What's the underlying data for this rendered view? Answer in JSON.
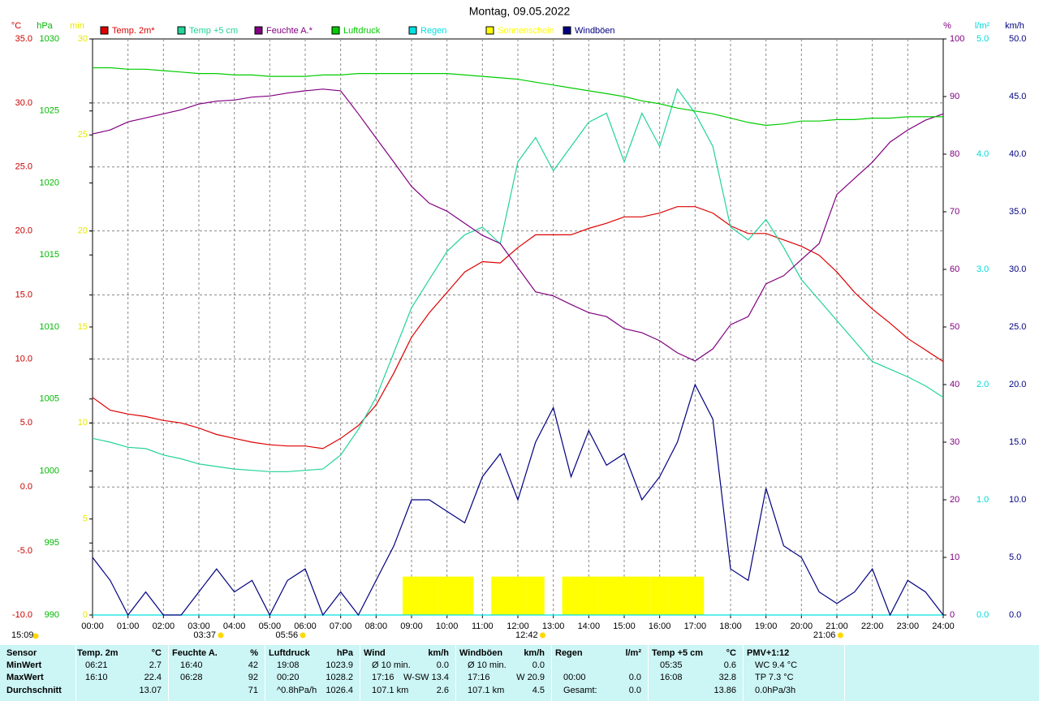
{
  "chart_data": {
    "type": "line",
    "title": "Montag, 09.05.2022",
    "x": [
      0,
      0.5,
      1,
      1.5,
      2,
      2.5,
      3,
      3.5,
      4,
      4.5,
      5,
      5.5,
      6,
      6.5,
      7,
      7.5,
      8,
      8.5,
      9,
      9.5,
      10,
      10.5,
      11,
      11.5,
      12,
      12.5,
      13,
      13.5,
      14,
      14.5,
      15,
      15.5,
      16,
      16.5,
      17,
      17.5,
      18,
      18.5,
      19,
      19.5,
      20,
      20.5,
      21,
      21.5,
      22,
      22.5,
      23,
      23.5,
      24
    ],
    "xlim": [
      0,
      24
    ],
    "xticks": [
      {
        "value": 0,
        "label": "00:00"
      },
      {
        "value": 1,
        "label": "01:00"
      },
      {
        "value": 2,
        "label": "02:00"
      },
      {
        "value": 3,
        "label": "03:00"
      },
      {
        "value": 4,
        "label": "04:00"
      },
      {
        "value": 5,
        "label": "05:00"
      },
      {
        "value": 6,
        "label": "06:00"
      },
      {
        "value": 7,
        "label": "07:00"
      },
      {
        "value": 8,
        "label": "08:00"
      },
      {
        "value": 9,
        "label": "09:00"
      },
      {
        "value": 10,
        "label": "10:00"
      },
      {
        "value": 11,
        "label": "11:00"
      },
      {
        "value": 12,
        "label": "12:00"
      },
      {
        "value": 13,
        "label": "13:00"
      },
      {
        "value": 14,
        "label": "14:00"
      },
      {
        "value": 15,
        "label": "15:00"
      },
      {
        "value": 16,
        "label": "16:00"
      },
      {
        "value": 17,
        "label": "17:00"
      },
      {
        "value": 18,
        "label": "18:00"
      },
      {
        "value": 19,
        "label": "19:00"
      },
      {
        "value": 20,
        "label": "20:00"
      },
      {
        "value": 21,
        "label": "21:00"
      },
      {
        "value": 22,
        "label": "22:00"
      },
      {
        "value": 23,
        "label": "23:00"
      },
      {
        "value": 24,
        "label": "24:00"
      }
    ],
    "grid": true,
    "axes": [
      {
        "name": "°C",
        "color": "#cc0000",
        "lim": [
          -10,
          35
        ],
        "ticks": [
          {
            "value": 35,
            "label": "35.0"
          },
          {
            "value": 30,
            "label": "30.0"
          },
          {
            "value": 25,
            "label": "25.0"
          },
          {
            "value": 20,
            "label": "20.0"
          },
          {
            "value": 15,
            "label": "15.0"
          },
          {
            "value": 10,
            "label": "10.0"
          },
          {
            "value": 5,
            "label": "5.0"
          },
          {
            "value": 0,
            "label": "0.0"
          },
          {
            "value": -5,
            "label": "-5.0"
          },
          {
            "value": -10,
            "label": "-10.0"
          }
        ]
      },
      {
        "name": "hPa",
        "color": "#00bb00",
        "lim": [
          990,
          1030
        ],
        "ticks": [
          1030,
          1025,
          1020,
          1015,
          1010,
          1005,
          1000,
          995,
          990
        ]
      },
      {
        "name": "min",
        "color": "#e8e800",
        "lim": [
          0,
          30
        ],
        "ticks": [
          30,
          25,
          20,
          15,
          10,
          5,
          0
        ]
      },
      {
        "name": "%",
        "color": "#800080",
        "lim": [
          0,
          100
        ],
        "ticks": [
          100,
          90,
          80,
          70,
          60,
          50,
          40,
          30,
          20,
          10,
          0
        ]
      },
      {
        "name": "l/m²",
        "color": "#00d8d8",
        "lim": [
          0,
          5
        ],
        "ticks": [
          {
            "value": 5,
            "label": "5.0"
          },
          {
            "value": 4,
            "label": "4.0"
          },
          {
            "value": 3,
            "label": "3.0"
          },
          {
            "value": 2,
            "label": "2.0"
          },
          {
            "value": 1,
            "label": "1.0"
          },
          {
            "value": 0,
            "label": "0.0"
          }
        ]
      },
      {
        "name": "km/h",
        "color": "#000080",
        "lim": [
          0,
          50
        ],
        "ticks": [
          {
            "value": 50,
            "label": "50.0"
          },
          {
            "value": 45,
            "label": "45.0"
          },
          {
            "value": 40,
            "label": "40.0"
          },
          {
            "value": 35,
            "label": "35.0"
          },
          {
            "value": 30,
            "label": "30.0"
          },
          {
            "value": 25,
            "label": "25.0"
          },
          {
            "value": 20,
            "label": "20.0"
          },
          {
            "value": 15,
            "label": "15.0"
          },
          {
            "value": 10,
            "label": "10.0"
          },
          {
            "value": 5,
            "label": "5.0"
          },
          {
            "value": 0,
            "label": "0.0"
          }
        ]
      }
    ],
    "series": [
      {
        "name": "Temp. 2m*",
        "color": "#dd0000",
        "axis": 0,
        "values": [
          7.0,
          6.0,
          5.7,
          5.5,
          5.2,
          5.0,
          4.6,
          4.1,
          3.8,
          3.5,
          3.3,
          3.2,
          3.2,
          3.0,
          3.8,
          4.8,
          6.4,
          8.9,
          11.7,
          13.6,
          15.2,
          16.8,
          17.6,
          17.5,
          18.7,
          19.7,
          19.7,
          19.7,
          20.2,
          20.6,
          21.1,
          21.1,
          21.4,
          21.9,
          21.9,
          21.4,
          20.4,
          19.8,
          19.8,
          19.3,
          18.8,
          18.1,
          16.8,
          15.2,
          13.9,
          12.8,
          11.6,
          10.7,
          9.8
        ]
      },
      {
        "name": "Temp +5 cm",
        "color": "#22d39a",
        "axis": 0,
        "values": [
          3.8,
          3.5,
          3.1,
          3.0,
          2.5,
          2.2,
          1.8,
          1.6,
          1.4,
          1.3,
          1.2,
          1.2,
          1.3,
          1.4,
          2.5,
          4.5,
          7.0,
          10.5,
          14.0,
          16.2,
          18.4,
          19.7,
          20.3,
          19.0,
          25.4,
          27.3,
          24.7,
          26.6,
          28.5,
          29.2,
          25.4,
          29.2,
          26.6,
          31.1,
          29.2,
          26.6,
          20.3,
          19.3,
          20.9,
          18.7,
          16.2,
          14.6,
          13.0,
          11.4,
          9.8,
          9.2,
          8.6,
          7.9,
          7.0
        ]
      },
      {
        "name": "Feuchte A.*",
        "color": "#800080",
        "axis": 3,
        "values": [
          83.5,
          84.2,
          85.6,
          86.3,
          87.0,
          87.7,
          88.7,
          89.2,
          89.4,
          89.9,
          90.1,
          90.6,
          91.0,
          91.3,
          91.0,
          87.0,
          82.8,
          78.6,
          74.4,
          71.5,
          70.1,
          68.0,
          65.9,
          64.5,
          60.3,
          56.1,
          55.4,
          53.9,
          52.5,
          51.8,
          49.7,
          49.0,
          47.6,
          45.5,
          44.1,
          46.2,
          50.4,
          51.8,
          57.5,
          58.9,
          61.7,
          64.5,
          73.0,
          75.8,
          78.6,
          82.1,
          84.2,
          85.9,
          87.0
        ]
      },
      {
        "name": "Luftdruck",
        "color": "#00cc00",
        "axis": 1,
        "values": [
          1028.0,
          1028.0,
          1027.9,
          1027.9,
          1027.8,
          1027.7,
          1027.6,
          1027.6,
          1027.5,
          1027.5,
          1027.4,
          1027.4,
          1027.4,
          1027.5,
          1027.5,
          1027.6,
          1027.6,
          1027.6,
          1027.6,
          1027.6,
          1027.6,
          1027.5,
          1027.4,
          1027.3,
          1027.2,
          1027.0,
          1026.8,
          1026.6,
          1026.4,
          1026.2,
          1026.0,
          1025.7,
          1025.5,
          1025.2,
          1025.0,
          1024.8,
          1024.5,
          1024.2,
          1024.0,
          1024.1,
          1024.3,
          1024.3,
          1024.4,
          1024.4,
          1024.5,
          1024.5,
          1024.6,
          1024.6,
          1024.6
        ]
      },
      {
        "name": "Regen",
        "color": "#00e0e0",
        "axis": 4,
        "values": [
          0,
          0,
          0,
          0,
          0,
          0,
          0,
          0,
          0,
          0,
          0,
          0,
          0,
          0,
          0,
          0,
          0,
          0,
          0,
          0,
          0,
          0,
          0,
          0,
          0,
          0,
          0,
          0,
          0,
          0,
          0,
          0,
          0,
          0,
          0,
          0,
          0,
          0,
          0,
          0,
          0,
          0,
          0,
          0,
          0,
          0,
          0,
          0,
          0
        ]
      },
      {
        "name": "Sonnenschein",
        "color": "#ffff00",
        "axis": 2,
        "type": "bar",
        "values": [
          0,
          0,
          0,
          0,
          0,
          0,
          0,
          0,
          0,
          0,
          0,
          0,
          0,
          0,
          0,
          0,
          0,
          0,
          2,
          2,
          2,
          2,
          0,
          2,
          2,
          2,
          0,
          2,
          2,
          2,
          2,
          2,
          2,
          2,
          2,
          0,
          0,
          0,
          0,
          0,
          0,
          0,
          0,
          0,
          0,
          0,
          0,
          0,
          0
        ]
      },
      {
        "name": "Windböen",
        "color": "#000080",
        "axis": 5,
        "values": [
          5,
          3,
          0,
          2,
          0,
          0,
          2,
          4,
          2,
          3,
          0,
          3,
          4,
          0,
          2,
          0,
          3,
          6,
          10,
          10,
          9,
          8,
          12,
          14,
          10,
          15,
          18,
          12,
          16,
          13,
          14,
          10,
          12,
          15,
          20,
          17,
          4,
          3,
          11,
          6,
          5,
          2,
          1,
          2,
          4,
          0,
          3,
          2,
          0
        ]
      }
    ],
    "corner_label": "15:09",
    "annotations": [
      {
        "x": 3.617,
        "label": "03:37"
      },
      {
        "x": 5.933,
        "label": "05:56"
      },
      {
        "x": 12.7,
        "label": "12:42"
      },
      {
        "x": 21.1,
        "label": "21:06"
      }
    ]
  },
  "table": {
    "columns": [
      {
        "title": "Sensor",
        "align": "left",
        "rows": [
          [
            "MinWert"
          ],
          [
            "MaxWert"
          ],
          [
            "Durchschnitt"
          ]
        ]
      },
      {
        "title": "Temp. 2m",
        "unit": "°C",
        "rows": [
          [
            "06:21",
            "2.7"
          ],
          [
            "16:10",
            "22.4"
          ],
          [
            "13.07"
          ]
        ]
      },
      {
        "title": "Feuchte A.",
        "unit": "%",
        "rows": [
          [
            "16:40",
            "42"
          ],
          [
            "06:28",
            "92"
          ],
          [
            "71"
          ]
        ]
      },
      {
        "title": "Luftdruck",
        "unit": "hPa",
        "rows": [
          [
            "19:08",
            "1023.9"
          ],
          [
            "00:20",
            "1028.2"
          ],
          [
            "^0.8hPa/h",
            "1026.4"
          ]
        ]
      },
      {
        "title": "Wind",
        "unit": "km/h",
        "rows": [
          [
            "Ø 10 min.",
            "0.0"
          ],
          [
            "17:16",
            "W-SW 13.4"
          ],
          [
            "107.1 km",
            "2.6"
          ]
        ]
      },
      {
        "title": "Windböen",
        "unit": "km/h",
        "rows": [
          [
            "Ø 10 min.",
            "0.0"
          ],
          [
            "17:16",
            "W 20.9"
          ],
          [
            "107.1 km",
            "4.5"
          ]
        ]
      },
      {
        "title": "Regen",
        "unit": "l/m²",
        "rows": [
          [],
          [
            "00:00",
            "0.0"
          ],
          [
            "Gesamt:",
            "0.0"
          ]
        ]
      },
      {
        "title": "Temp +5 cm",
        "unit": "°C",
        "rows": [
          [
            "05:35",
            "0.6"
          ],
          [
            "16:08",
            "32.8"
          ],
          [
            "13.86"
          ]
        ]
      },
      {
        "title": "PMV+1:12",
        "align": "left",
        "rows": [
          [
            "WC 9.4 °C"
          ],
          [
            "TP 7.3 °C"
          ],
          [
            "0.0hPa/3h"
          ]
        ]
      }
    ]
  }
}
